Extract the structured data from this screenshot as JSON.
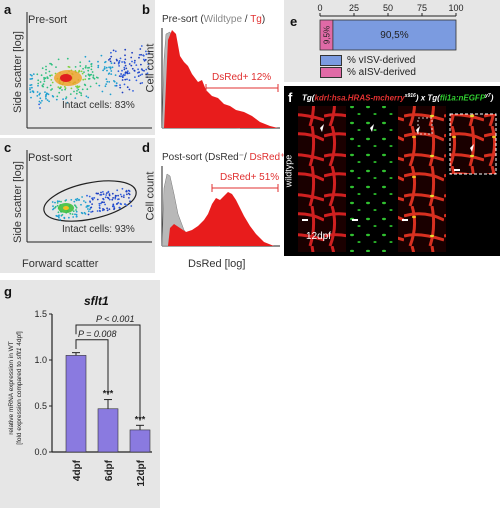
{
  "panels": {
    "a": {
      "label": "a",
      "title": "Pre-sort",
      "gate": "Intact cells: 83%"
    },
    "b": {
      "label": "b",
      "title_start": "Pre-sort (",
      "title_wt": "Wildtype",
      "title_sep": " / ",
      "title_tg": "Tg",
      "title_end": ")",
      "ylabel": "Cell count",
      "gate": "DsRed+ 12%"
    },
    "c": {
      "label": "c",
      "title": "Post-sort",
      "gate": "Intact cells: 93%"
    },
    "d": {
      "label": "d",
      "title_start": "Post-sort (",
      "title_neg": "DsRed⁻",
      "title_sep": "/ ",
      "title_pos": "DsRed⁺",
      "title_end": ")",
      "ylabel": "Cell count",
      "gate": "DsRed+ 51%"
    },
    "ac_axes": {
      "ylabel_top": "Side scatter [log]",
      "ylabel_bottom": "Side scatter [log]",
      "xlabel": "Forward scatter"
    },
    "bd_axes": {
      "xlabel": "DsRed [log]"
    },
    "e": {
      "label": "e",
      "legend_v": "% vISV-derived",
      "legend_a": "% aISV-derived",
      "colors": {
        "v": "#7b9be0",
        "a": "#e06aa6"
      }
    },
    "f": {
      "label": "f",
      "title_tg1": "Tg(",
      "title_gene1": "kdrl:hsa.HRAS-mcherry",
      "title_sup1": "s916",
      "title_mid": ") x Tg(",
      "title_gene2": "fli1a:nEGFP",
      "title_sup2": "y7",
      "title_end": ")",
      "side_label": "wildtype",
      "stage": "12dpf"
    },
    "g": {
      "label": "g",
      "title": "sflt1",
      "pval1": "P = 0.008",
      "pval2": "P < 0.001"
    }
  },
  "chart_data": [
    {
      "type": "bar",
      "orientation": "horizontal-stacked",
      "categories": [
        ""
      ],
      "series": [
        {
          "name": "% aISV-derived",
          "values": [
            9.5
          ],
          "label": "9,5%"
        },
        {
          "name": "% vISV-derived",
          "values": [
            90.5
          ],
          "label": "90,5%"
        }
      ],
      "xticks": [
        "0",
        "25",
        "50",
        "75",
        "100"
      ],
      "xlim": [
        0,
        100
      ],
      "legend": "bottom"
    },
    {
      "type": "bar",
      "categories": [
        "4dpf",
        "6dpf",
        "12dpf"
      ],
      "values": [
        1.05,
        0.47,
        0.24
      ],
      "errors": [
        0.03,
        0.1,
        0.05
      ],
      "significance": [
        "",
        "***",
        "***"
      ],
      "ylabel": "relative mRNA expression in WT\n[fold expression compared to sflt1 4dpf]",
      "ylim": [
        0,
        1.5
      ],
      "yticks": [
        "0.0",
        "0.5",
        "1.0",
        "1.5"
      ],
      "color": "#8a7ae0"
    }
  ]
}
